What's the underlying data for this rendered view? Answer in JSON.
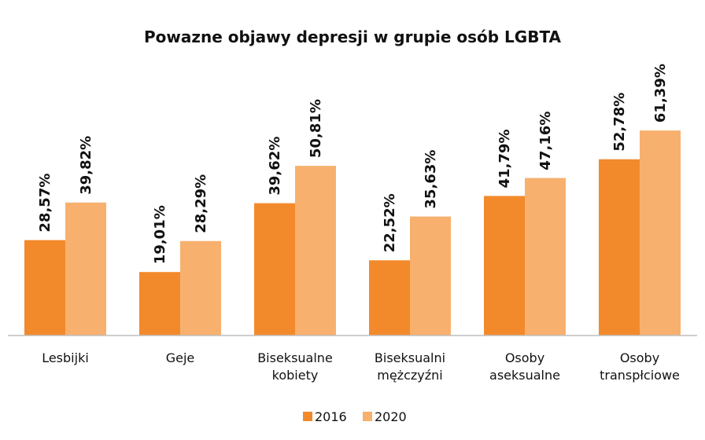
{
  "chart_data": {
    "type": "bar",
    "title": "Powazne objawy depresji w grupie osób LGBTA",
    "categories": [
      [
        "Lesbijki"
      ],
      [
        "Geje"
      ],
      [
        "Biseksualne",
        "kobiety"
      ],
      [
        "Biseksualni",
        "mężczyźni"
      ],
      [
        "Osoby",
        "aseksualne"
      ],
      [
        "Osoby",
        "transpłciowe"
      ]
    ],
    "series": [
      {
        "name": "2016",
        "color": "#f28a2b",
        "values": [
          28.57,
          19.01,
          39.62,
          22.52,
          41.79,
          52.78
        ],
        "labels": [
          "28,57%",
          "19,01%",
          "39,62%",
          "22,52%",
          "41,79%",
          "52,78%"
        ]
      },
      {
        "name": "2020",
        "color": "#f8b06e",
        "values": [
          39.82,
          28.29,
          50.81,
          35.63,
          47.16,
          61.39
        ],
        "labels": [
          "39,82%",
          "28,29%",
          "50,81%",
          "35,63%",
          "47,16%",
          "61,39%"
        ]
      }
    ],
    "ylim": [
      0,
      70
    ],
    "legend_position": "bottom-center",
    "grid": false,
    "axis_color": "#bfbfbf"
  }
}
